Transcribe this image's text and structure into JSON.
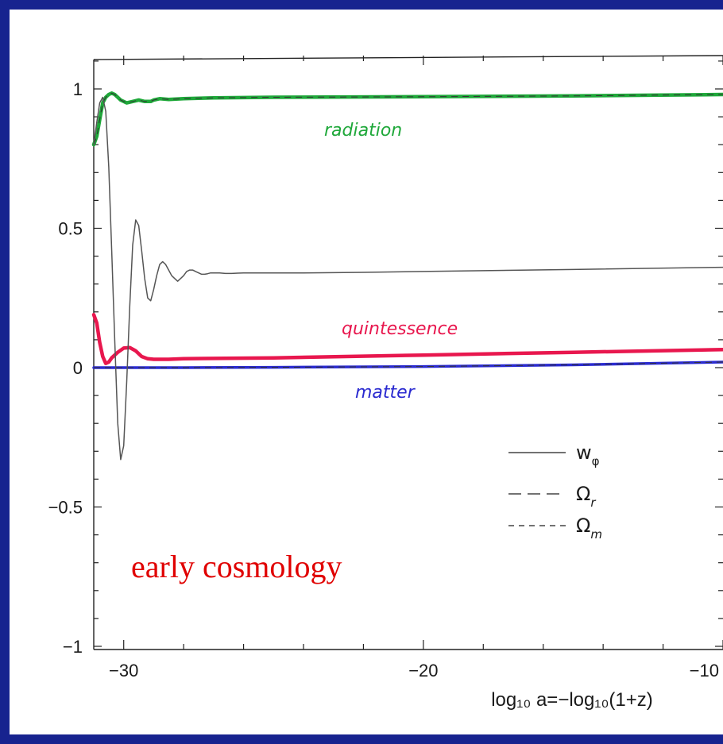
{
  "chart_data": {
    "type": "line",
    "xlabel": "log₁₀ a=−log₁₀(1+z)",
    "x_ticks": [
      "−30",
      "−20",
      "−10"
    ],
    "y_ticks": [
      "1",
      "0.5",
      "0",
      "−0.5",
      "−1"
    ],
    "xlim": [
      -31,
      -10
    ],
    "ylim": [
      -1,
      1.1
    ],
    "grid": false,
    "legend_placement": "right",
    "legend": [
      {
        "label": "w_φ",
        "main": "w",
        "sub": "φ",
        "style": "solid"
      },
      {
        "label": "Ω_r",
        "main": "Ω",
        "sub": "r",
        "style": "long-dash"
      },
      {
        "label": "Ω_m",
        "main": "Ω",
        "sub": "m",
        "style": "short-dash"
      }
    ],
    "annotations": {
      "radiation": "radiation",
      "quintessence": "quintessence",
      "matter": "matter",
      "overlay": "early cosmology"
    },
    "colors": {
      "radiation": "#1fa83a",
      "quintessence": "#e8174e",
      "matter": "#2a2ad0",
      "w_phi": "#555555",
      "overlay": "#e00000",
      "background": "#17238f"
    },
    "series": [
      {
        "name": "w_φ",
        "key": "w",
        "x": [
          -31.0,
          -30.9,
          -30.8,
          -30.7,
          -30.6,
          -30.5,
          -30.4,
          -30.3,
          -30.2,
          -30.1,
          -30.0,
          -29.9,
          -29.8,
          -29.7,
          -29.6,
          -29.5,
          -29.4,
          -29.3,
          -29.2,
          -29.1,
          -29.0,
          -28.9,
          -28.8,
          -28.7,
          -28.6,
          -28.5,
          -28.4,
          -28.3,
          -28.2,
          -28.1,
          -28.0,
          -27.9,
          -27.8,
          -27.7,
          -27.6,
          -27.5,
          -27.4,
          -27.3,
          -27.2,
          -27.1,
          -27.0,
          -26.8,
          -26.6,
          -26.4,
          -26.2,
          -26.0,
          -25.5,
          -25.0,
          -24.0,
          -22.0,
          -20.0,
          -15.0,
          -10.0
        ],
        "y": [
          0.8,
          0.88,
          0.95,
          0.97,
          0.92,
          0.72,
          0.42,
          0.1,
          -0.2,
          -0.33,
          -0.28,
          -0.05,
          0.22,
          0.44,
          0.53,
          0.51,
          0.42,
          0.32,
          0.25,
          0.24,
          0.28,
          0.33,
          0.37,
          0.38,
          0.37,
          0.35,
          0.33,
          0.32,
          0.31,
          0.32,
          0.33,
          0.345,
          0.35,
          0.35,
          0.345,
          0.34,
          0.335,
          0.335,
          0.337,
          0.34,
          0.34,
          0.34,
          0.338,
          0.338,
          0.339,
          0.34,
          0.34,
          0.34,
          0.34,
          0.342,
          0.345,
          0.352,
          0.36
        ]
      },
      {
        "name": "Ω_r",
        "key": "r",
        "x": [
          -31.0,
          -30.9,
          -30.8,
          -30.7,
          -30.6,
          -30.5,
          -30.4,
          -30.3,
          -30.1,
          -29.9,
          -29.7,
          -29.5,
          -29.3,
          -29.1,
          -29.0,
          -28.8,
          -28.5,
          -28.0,
          -27.0,
          -25.0,
          -20.0,
          -15.0,
          -10.0
        ],
        "y": [
          0.8,
          0.83,
          0.89,
          0.95,
          0.97,
          0.98,
          0.985,
          0.98,
          0.96,
          0.95,
          0.955,
          0.96,
          0.955,
          0.955,
          0.96,
          0.965,
          0.962,
          0.965,
          0.968,
          0.97,
          0.972,
          0.975,
          0.98
        ]
      },
      {
        "name": "quintessence",
        "key": "q",
        "x": [
          -31.0,
          -30.9,
          -30.8,
          -30.7,
          -30.6,
          -30.5,
          -30.4,
          -30.3,
          -30.2,
          -30.0,
          -29.8,
          -29.6,
          -29.4,
          -29.2,
          -29.0,
          -28.5,
          -28.0,
          -27.0,
          -25.0,
          -20.0,
          -15.0,
          -10.0
        ],
        "y": [
          0.19,
          0.16,
          0.09,
          0.04,
          0.015,
          0.02,
          0.035,
          0.045,
          0.055,
          0.07,
          0.072,
          0.06,
          0.04,
          0.032,
          0.03,
          0.03,
          0.032,
          0.033,
          0.035,
          0.045,
          0.055,
          0.065
        ]
      },
      {
        "name": "Ω_m",
        "key": "m",
        "x": [
          -31.0,
          -28.0,
          -25.0,
          -20.0,
          -15.0,
          -12.0,
          -10.0
        ],
        "y": [
          0.0,
          0.0,
          0.001,
          0.004,
          0.01,
          0.016,
          0.02
        ]
      }
    ]
  }
}
